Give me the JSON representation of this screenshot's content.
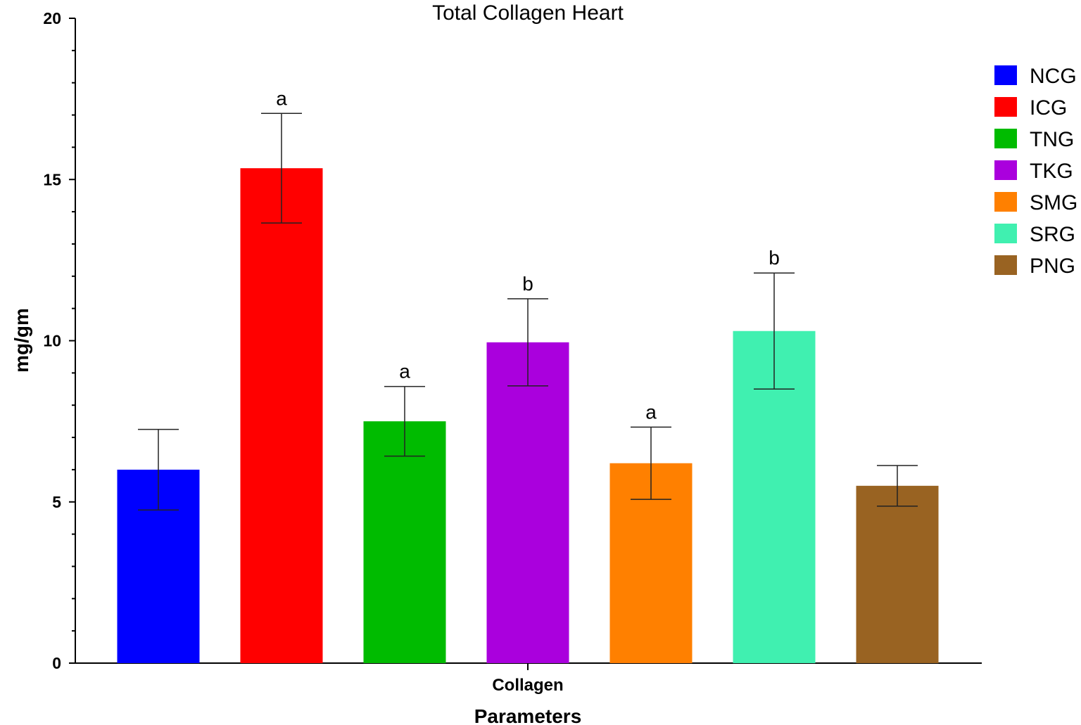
{
  "chart_data": {
    "type": "bar",
    "title": "Total Collagen Heart",
    "xlabel": "Parameters",
    "ylabel": "mg/gm",
    "categories": [
      "Collagen"
    ],
    "ylim": [
      0,
      20
    ],
    "yticks": [
      "0",
      "5",
      "10",
      "15",
      "20"
    ],
    "grid": false,
    "legend_position": "right",
    "series": [
      {
        "name": "NCG",
        "color": "#0000ff",
        "value": 6.0,
        "error": 1.25,
        "sig": ""
      },
      {
        "name": "ICG",
        "color": "#ff0000",
        "value": 15.35,
        "error": 1.7,
        "sig": "a"
      },
      {
        "name": "TNG",
        "color": "#00bb00",
        "value": 7.5,
        "error": 1.08,
        "sig": "a"
      },
      {
        "name": "TKG",
        "color": "#aa00dd",
        "value": 9.95,
        "error": 1.35,
        "sig": "b"
      },
      {
        "name": "SMG",
        "color": "#ff8000",
        "value": 6.2,
        "error": 1.12,
        "sig": "a"
      },
      {
        "name": "SRG",
        "color": "#40f0b0",
        "value": 10.3,
        "error": 1.8,
        "sig": "b"
      },
      {
        "name": "PNG",
        "color": "#996322",
        "value": 5.5,
        "error": 0.63,
        "sig": ""
      }
    ]
  }
}
